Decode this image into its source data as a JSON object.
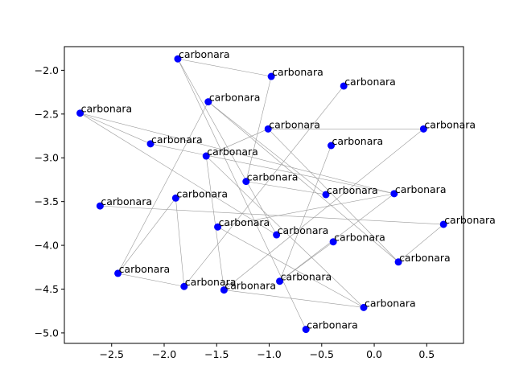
{
  "chart_data": {
    "type": "scatter",
    "title": "",
    "xlabel": "",
    "ylabel": "",
    "xlim": [
      -2.95,
      0.85
    ],
    "ylim": [
      -5.12,
      -1.73
    ],
    "xticks": [
      "−2.5",
      "−2.0",
      "−1.5",
      "−1.0",
      "−0.5",
      "0.0",
      "0.5"
    ],
    "xtick_values": [
      -2.5,
      -2.0,
      -1.5,
      -1.0,
      -0.5,
      0.0,
      0.5
    ],
    "yticks": [
      "−5.0",
      "−4.5",
      "−4.0",
      "−3.5",
      "−3.0",
      "−2.5",
      "−2.0"
    ],
    "ytick_values": [
      -5.0,
      -4.5,
      -4.0,
      -3.5,
      -3.0,
      -2.5,
      -2.0
    ],
    "grid": false,
    "marker_color": "#0000ff",
    "edge_color": "#9a9a9a",
    "points": [
      {
        "x": -1.87,
        "y": -1.87,
        "label": "carbonara"
      },
      {
        "x": -0.98,
        "y": -2.07,
        "label": "carbonara"
      },
      {
        "x": -0.29,
        "y": -2.18,
        "label": "carbonara"
      },
      {
        "x": -1.58,
        "y": -2.36,
        "label": "carbonara"
      },
      {
        "x": -2.8,
        "y": -2.49,
        "label": "carbonara"
      },
      {
        "x": -1.01,
        "y": -2.67,
        "label": "carbonara"
      },
      {
        "x": 0.47,
        "y": -2.67,
        "label": "carbonara"
      },
      {
        "x": -2.13,
        "y": -2.84,
        "label": "carbonara"
      },
      {
        "x": -0.41,
        "y": -2.86,
        "label": "carbonara"
      },
      {
        "x": -1.6,
        "y": -2.98,
        "label": "carbonara"
      },
      {
        "x": -1.22,
        "y": -3.27,
        "label": "carbonara"
      },
      {
        "x": -0.46,
        "y": -3.42,
        "label": "carbonara"
      },
      {
        "x": 0.19,
        "y": -3.41,
        "label": "carbonara"
      },
      {
        "x": -1.89,
        "y": -3.46,
        "label": "carbonara"
      },
      {
        "x": -2.61,
        "y": -3.55,
        "label": "carbonara"
      },
      {
        "x": 0.66,
        "y": -3.76,
        "label": "carbonara"
      },
      {
        "x": -1.49,
        "y": -3.79,
        "label": "carbonara"
      },
      {
        "x": -0.93,
        "y": -3.88,
        "label": "carbonara"
      },
      {
        "x": -0.39,
        "y": -3.96,
        "label": "carbonara"
      },
      {
        "x": 0.23,
        "y": -4.19,
        "label": "carbonara"
      },
      {
        "x": -2.44,
        "y": -4.32,
        "label": "carbonara"
      },
      {
        "x": -0.9,
        "y": -4.41,
        "label": "carbonara"
      },
      {
        "x": -1.81,
        "y": -4.47,
        "label": "carbonara"
      },
      {
        "x": -1.43,
        "y": -4.51,
        "label": "carbonara"
      },
      {
        "x": -0.1,
        "y": -4.71,
        "label": "carbonara"
      },
      {
        "x": -0.65,
        "y": -4.96,
        "label": "carbonara"
      }
    ],
    "edges": [
      [
        0,
        25
      ],
      [
        0,
        1
      ],
      [
        1,
        10
      ],
      [
        2,
        22
      ],
      [
        3,
        20
      ],
      [
        3,
        19
      ],
      [
        3,
        11
      ],
      [
        4,
        7
      ],
      [
        4,
        17
      ],
      [
        4,
        12
      ],
      [
        5,
        9
      ],
      [
        5,
        19
      ],
      [
        5,
        6
      ],
      [
        6,
        23
      ],
      [
        8,
        21
      ],
      [
        9,
        23
      ],
      [
        9,
        24
      ],
      [
        10,
        11
      ],
      [
        12,
        16
      ],
      [
        13,
        22
      ],
      [
        13,
        20
      ],
      [
        14,
        15
      ],
      [
        15,
        19
      ],
      [
        16,
        24
      ],
      [
        18,
        21
      ],
      [
        21,
        12
      ],
      [
        20,
        22
      ],
      [
        23,
        24
      ],
      [
        7,
        12
      ],
      [
        0,
        17
      ]
    ]
  }
}
